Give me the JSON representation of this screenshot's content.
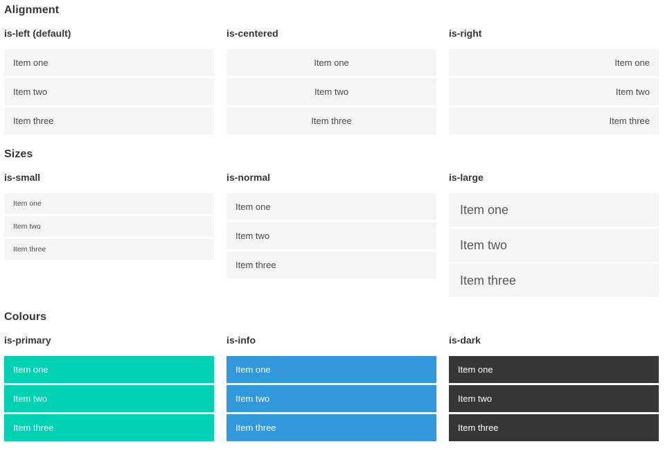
{
  "colors": {
    "primary": "#00d1b2",
    "info": "#3298dc",
    "dark": "#363636",
    "item-bg": "#f5f5f5",
    "item-text": "#4a4a4a",
    "heading": "#363636"
  },
  "sections": [
    {
      "title": "Alignment",
      "groups": [
        {
          "label": "is-left (default)",
          "items": [
            "Item one",
            "Item two",
            "Item three"
          ]
        },
        {
          "label": "is-centered",
          "items": [
            "Item one",
            "Item two",
            "Item three"
          ]
        },
        {
          "label": "is-right",
          "items": [
            "Item one",
            "Item two",
            "Item three"
          ]
        }
      ]
    },
    {
      "title": "Sizes",
      "groups": [
        {
          "label": "is-small",
          "items": [
            "Item one",
            "Item two",
            "Item three"
          ]
        },
        {
          "label": "is-normal",
          "items": [
            "Item one",
            "Item two",
            "Item three"
          ]
        },
        {
          "label": "is-large",
          "items": [
            "Item one",
            "Item two",
            "Item three"
          ]
        }
      ]
    },
    {
      "title": "Colours",
      "groups": [
        {
          "label": "is-primary",
          "items": [
            "Item one",
            "Item two",
            "Item three"
          ]
        },
        {
          "label": "is-info",
          "items": [
            "Item one",
            "Item two",
            "Item three"
          ]
        },
        {
          "label": "is-dark",
          "items": [
            "Item one",
            "Item two",
            "Item three"
          ]
        }
      ]
    }
  ]
}
